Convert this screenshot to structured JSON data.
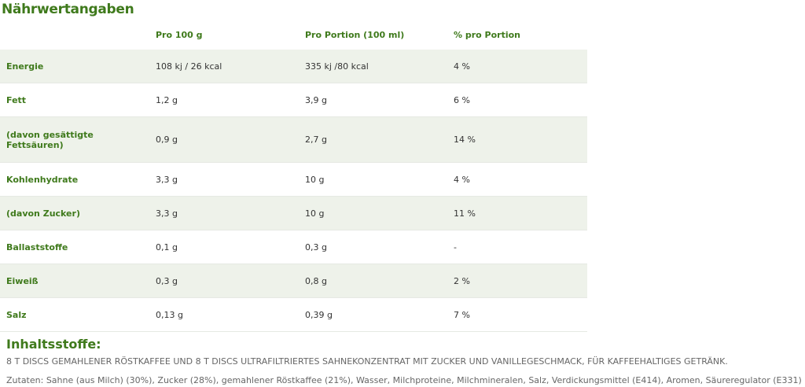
{
  "title": "Nährwertangaben",
  "headers": [
    "",
    "Pro 100 g",
    "Pro Portion (100 ml)",
    "% pro Portion"
  ],
  "rows": [
    [
      "Energie",
      "108 kj / 26 kcal",
      "335 kj /80 kcal",
      "4 %"
    ],
    [
      "Fett",
      "1,2 g",
      "3,9 g",
      "6 %"
    ],
    [
      "(davon gesättigte Fettsäuren)",
      "0,9 g",
      "2,7 g",
      "14 %"
    ],
    [
      "Kohlenhydrate",
      "3,3 g",
      "10 g",
      "4 %"
    ],
    [
      "(davon Zucker)",
      "3,3 g",
      "10 g",
      "11 %"
    ],
    [
      "Ballaststoffe",
      "0,1 g",
      "0,3 g",
      "-"
    ],
    [
      "Eiweiß",
      "0,3 g",
      "0,8 g",
      "2 %"
    ],
    [
      "Salz",
      "0,13 g",
      "0,39 g",
      "7 %"
    ]
  ],
  "ingredients": {
    "title": "Inhaltsstoffe:",
    "line1": "8 T DISCS GEMAHLENER RÖSTKAFFEE UND 8 T DISCS ULTRAFILTRIERTES SAHNEKONZENTRAT MIT ZUCKER UND VANILLEGESCHMACK, FÜR KAFFEEHALTIGES GETRÄNK.",
    "line2": "Zutaten: Sahne (aus Milch) (30%), Zucker (28%), gemahlener Röstkaffee (21%), Wasser, Milchproteine, Milchmineralen, Salz, Verdickungsmittel (E414), Aromen, Säureregulator (E331)"
  },
  "colors": {
    "accent": "#3f7a1c",
    "row_alt": "#eef2ea"
  }
}
